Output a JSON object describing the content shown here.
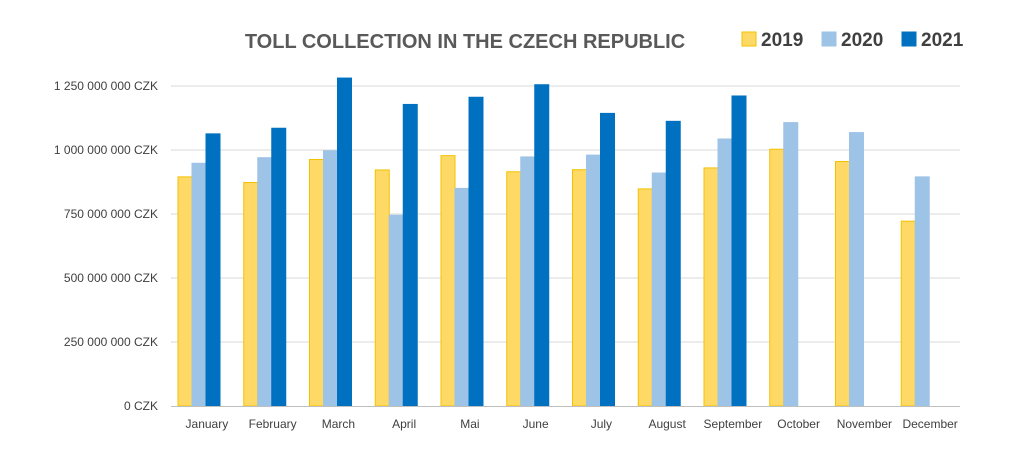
{
  "chart_data": {
    "type": "bar",
    "title": "TOLL COLLECTION IN THE CZECH REPUBLIC",
    "xlabel": "",
    "ylabel": "",
    "ylim": [
      0,
      1250000000
    ],
    "yticks": [
      0,
      250000000,
      500000000,
      750000000,
      1000000000,
      1250000000
    ],
    "ytick_labels": [
      "0 CZK",
      "250 000 000 CZK",
      "500 000 000 CZK",
      "750 000 000 CZK",
      "1 000 000 000 CZK",
      "1 250 000 000 CZK"
    ],
    "grid": true,
    "legend_position": "top-right",
    "categories": [
      "January",
      "February",
      "March",
      "April",
      "Mai",
      "June",
      "July",
      "August",
      "September",
      "October",
      "November",
      "December"
    ],
    "series": [
      {
        "name": "2019",
        "color": "#FFD966",
        "border": "#F2C200",
        "values": [
          895000000,
          873000000,
          963000000,
          922000000,
          978000000,
          915000000,
          923000000,
          848000000,
          930000000,
          1003000000,
          955000000,
          722000000
        ]
      },
      {
        "name": "2020",
        "color": "#9DC3E6",
        "border": "#9DC3E6",
        "values": [
          948000000,
          970000000,
          997000000,
          745000000,
          850000000,
          973000000,
          980000000,
          910000000,
          1043000000,
          1107000000,
          1068000000,
          895000000
        ]
      },
      {
        "name": "2021",
        "color": "#0070C0",
        "border": "#0070C0",
        "values": [
          1063000000,
          1085000000,
          1281000000,
          1178000000,
          1206000000,
          1255000000,
          1143000000,
          1112000000,
          1211000000,
          null,
          null,
          null
        ]
      }
    ]
  }
}
